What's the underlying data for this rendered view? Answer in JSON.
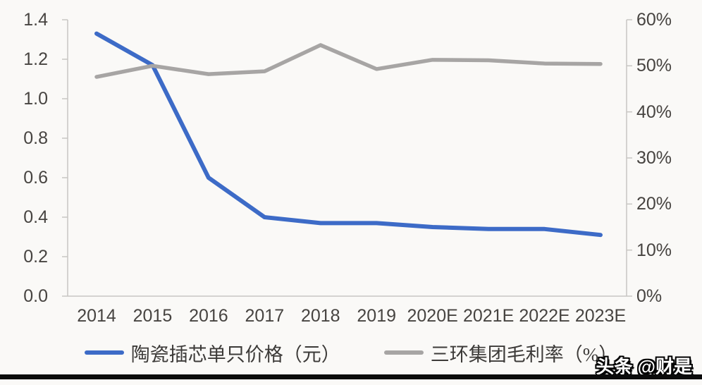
{
  "chart_data": {
    "type": "line",
    "title": "",
    "xlabel": "",
    "ylabel": "",
    "grid": false,
    "legend_position": "bottom",
    "categories": [
      "2014",
      "2015",
      "2016",
      "2017",
      "2018",
      "2019",
      "2020E",
      "2021E",
      "2022E",
      "2023E"
    ],
    "series": [
      {
        "name": "陶瓷插芯单只价格（元）",
        "axis": "left",
        "color": "#3D6BC7",
        "stroke_width": 6,
        "values": [
          1.33,
          1.17,
          0.6,
          0.4,
          0.37,
          0.37,
          0.35,
          0.34,
          0.34,
          0.31
        ]
      },
      {
        "name": "三环集团毛利率（%）",
        "axis": "right",
        "color": "#A7A5A4",
        "stroke_width": 5.5,
        "values": [
          47.6,
          50.0,
          48.2,
          48.8,
          54.5,
          49.3,
          51.3,
          51.2,
          50.5,
          50.4
        ]
      }
    ],
    "left_axis": {
      "min": 0,
      "max": 1.4,
      "tick_labels": [
        "1.4",
        "1.2",
        "1.0",
        "0.8",
        "0.6",
        "0.4",
        "0.2",
        "0.0"
      ]
    },
    "right_axis": {
      "min": 0,
      "max": 60,
      "tick_labels": [
        "60%",
        "50%",
        "40%",
        "30%",
        "20%",
        "10%",
        "0%"
      ]
    }
  },
  "colors": {
    "background": "#FAF9F7",
    "axis_line": "#C8C6C3",
    "tick_text": "#474441",
    "legend_text": "#3C3A38",
    "blue_series": "#3D6BC7",
    "gray_series": "#A7A5A4",
    "bottom_bar": "#0B0B0B"
  },
  "watermark": {
    "text": "头条 @财是"
  }
}
